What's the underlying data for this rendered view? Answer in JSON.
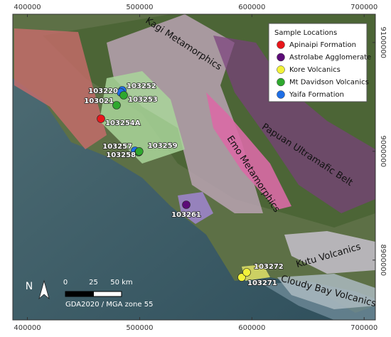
{
  "map": {
    "xlim": [
      387000,
      710000
    ],
    "ylim": [
      8845000,
      9126000
    ],
    "xticks": [
      400000,
      500000,
      600000,
      700000
    ],
    "yticks": [
      9100000,
      9000000,
      8900000
    ],
    "legend": {
      "title": "Sample Locations",
      "items": [
        {
          "name": "Apinaipi Formation",
          "color": "#e8161b"
        },
        {
          "name": "Astrolabe Agglomerate",
          "color": "#5c0b78"
        },
        {
          "name": "Kore Volcanics",
          "color": "#f2f23a"
        },
        {
          "name": "Mt Davidson Volcanics",
          "color": "#2ea82e"
        },
        {
          "name": "Yaifa Formation",
          "color": "#1f6fe6"
        }
      ]
    },
    "samples": [
      {
        "label": "103252",
        "group": 4,
        "x": 484530,
        "y": 9056075
      },
      {
        "label": "103220",
        "group": 4,
        "x": 483260,
        "y": 9054110
      },
      {
        "label": "103253",
        "group": 3,
        "x": 485800,
        "y": 9051500
      },
      {
        "label": "103021",
        "group": 3,
        "x": 479460,
        "y": 9042350
      },
      {
        "label": "103254A",
        "group": 0,
        "x": 465530,
        "y": 9029930
      },
      {
        "label": "103257",
        "group": 4,
        "x": 495930,
        "y": 9000530
      },
      {
        "label": "103258",
        "group": 3,
        "x": 499100,
        "y": 8999220
      },
      {
        "label": "103259",
        "group": 3,
        "x": 499600,
        "y": 8999900
      },
      {
        "label": "103261",
        "group": 1,
        "x": 541530,
        "y": 8950860
      },
      {
        "label": "103271",
        "group": 2,
        "x": 590930,
        "y": 8884200
      },
      {
        "label": "103272",
        "group": 2,
        "x": 595360,
        "y": 8888780
      }
    ],
    "regions": [
      "Kagi Metamorphics",
      "Papuan Ultramafic Belt",
      "Emo Metamorphics",
      "Kutu Volcanics",
      "Cloudy Bay Volcanics"
    ],
    "scale_bar": {
      "ticks": [
        0,
        25,
        {
          "value": 50,
          "label": "50 km"
        }
      ]
    },
    "north": "N",
    "crs": "GDA2020 / MGA zone 55"
  }
}
